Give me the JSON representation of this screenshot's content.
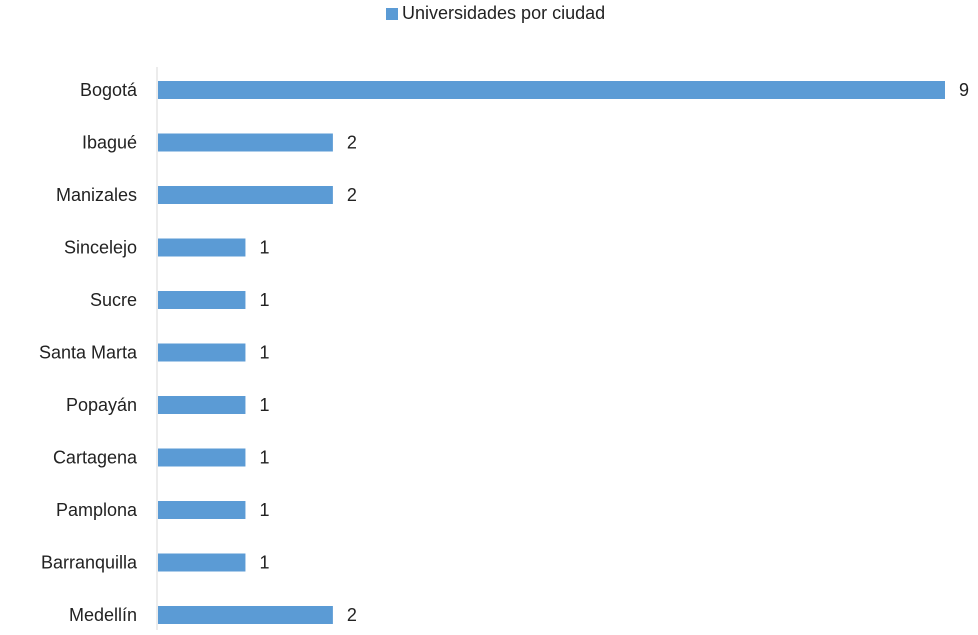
{
  "chart_data": {
    "type": "bar",
    "orientation": "horizontal",
    "categories": [
      "Bogotá",
      "Ibagué",
      "Manizales",
      "Sincelejo",
      "Sucre",
      "Santa Marta",
      "Popayán",
      "Cartagena",
      "Pamplona",
      "Barranquilla",
      "Medellín"
    ],
    "series": [
      {
        "name": "Universidades por ciudad",
        "values": [
          9,
          2,
          2,
          1,
          1,
          1,
          1,
          1,
          1,
          1,
          2
        ],
        "color": "#5b9bd5"
      }
    ],
    "xlim": [
      0,
      9
    ],
    "grid": false,
    "legend": "top",
    "data_labels": true
  }
}
